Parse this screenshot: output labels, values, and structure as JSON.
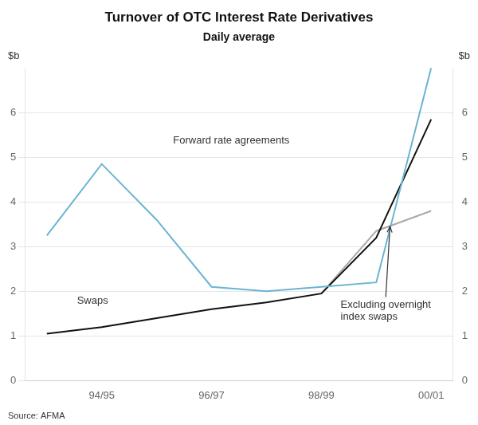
{
  "chart_data": {
    "type": "line",
    "title": "Turnover of OTC Interest Rate Derivatives",
    "subtitle": "Daily average",
    "ylabel": "$b",
    "y2label": "$b",
    "source": "Source: AFMA",
    "xlim": [
      -0.4,
      7.4
    ],
    "xticks": [
      {
        "value": 1,
        "label": "94/95"
      },
      {
        "value": 3,
        "label": "96/97"
      },
      {
        "value": 5,
        "label": "98/99"
      },
      {
        "value": 7,
        "label": "00/01"
      }
    ],
    "ylim": [
      0,
      7
    ],
    "yticks": [
      0,
      1,
      2,
      3,
      4,
      5,
      6
    ],
    "y2lim": [
      0,
      7
    ],
    "y2ticks": [
      0,
      1,
      2,
      3,
      4,
      5,
      6
    ],
    "grid": "y",
    "series": [
      {
        "color": "#6ab4d2",
        "x": [
          0,
          1,
          2,
          3,
          4,
          5,
          6,
          7
        ],
        "values": [
          3.25,
          4.85,
          3.6,
          2.1,
          2.0,
          2.1,
          2.2,
          7.0
        ]
      },
      {
        "color": "#111111",
        "x": [
          0,
          1,
          2,
          3,
          4,
          5,
          6,
          7
        ],
        "values": [
          1.05,
          1.2,
          1.4,
          1.6,
          1.75,
          1.95,
          3.2,
          5.85
        ]
      },
      {
        "color": "#aaaaaa",
        "x": [
          5,
          6,
          7
        ],
        "values": [
          1.95,
          3.35,
          3.8
        ]
      }
    ],
    "annotations": [
      {
        "text": "Swaps",
        "x": 0.55,
        "y": 1.72
      },
      {
        "text": "Forward rate agreements",
        "x": 2.3,
        "y": 5.3
      },
      {
        "text": "Excluding overnight\nindex swaps",
        "x": 5.35,
        "y": 1.55,
        "arrow_to": [
          6.25,
          3.45
        ]
      }
    ]
  }
}
